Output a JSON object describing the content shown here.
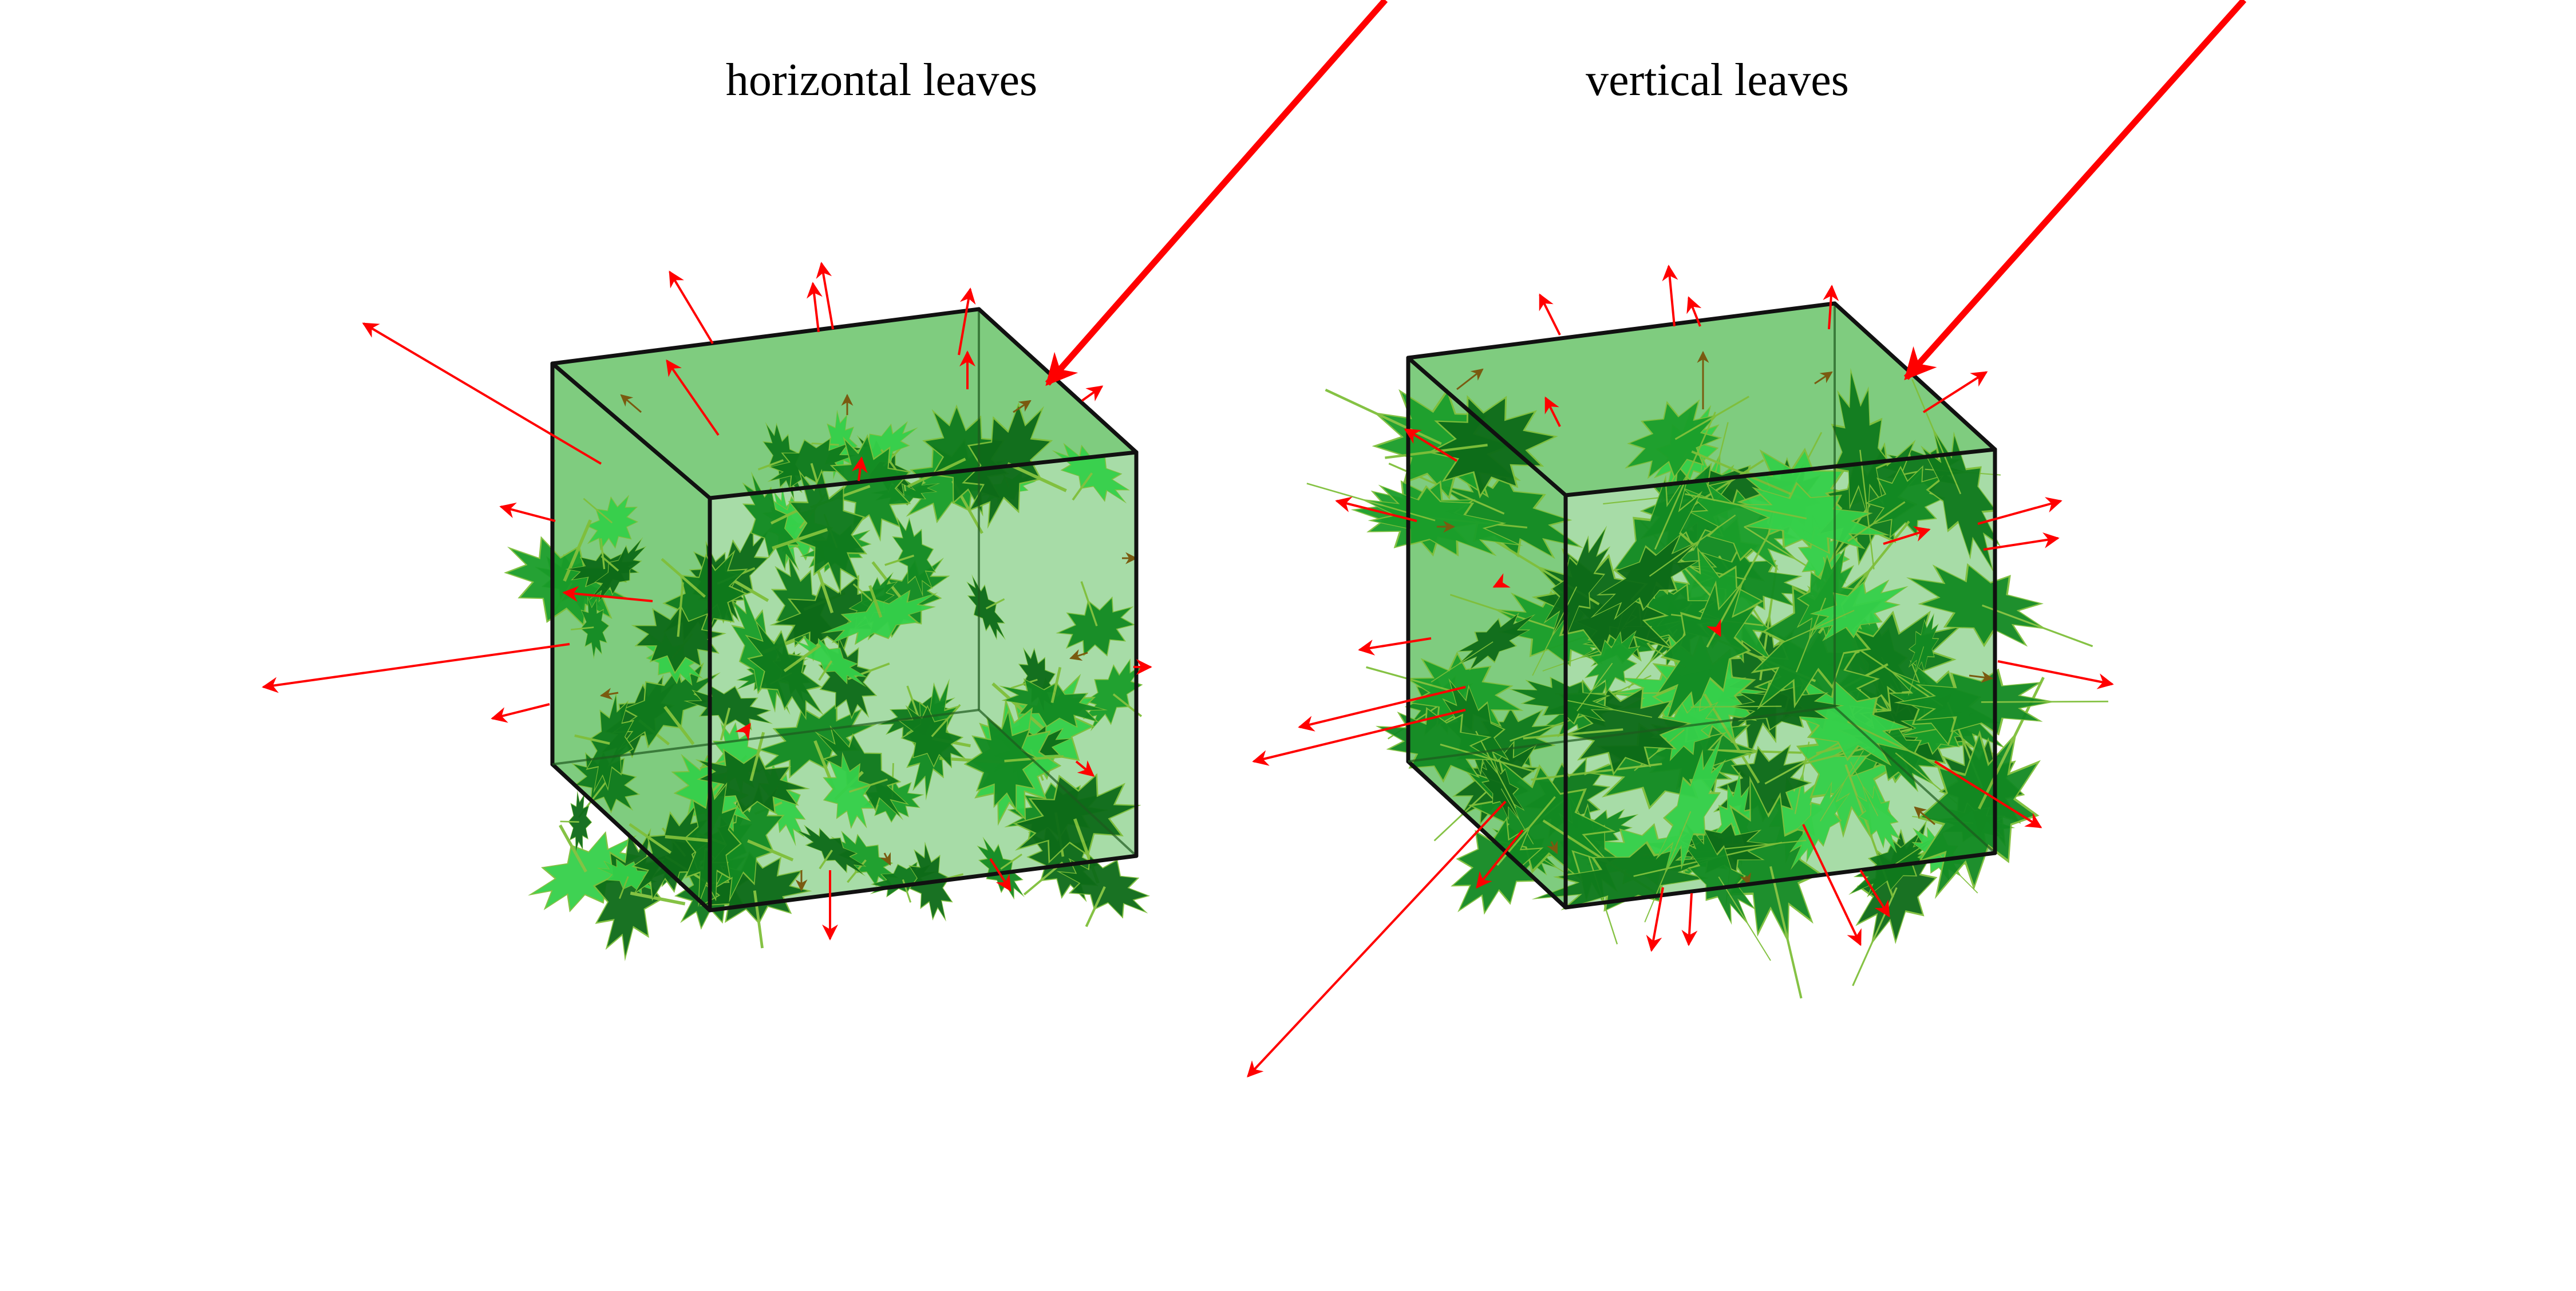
{
  "panels": [
    {
      "title": "horizontal leaves",
      "leaf_orientation": "horizontal"
    },
    {
      "title": "vertical leaves",
      "leaf_orientation": "vertical"
    }
  ],
  "colors": {
    "box_fill": "#5fbf5f",
    "box_edge": "#111111",
    "sun_ray": "#ff0000",
    "reflected_ray": "#ff0000",
    "inner_ray": "#7a5a10",
    "leaf_dark": "#0d6b18",
    "leaf_mid": "#1a9e2a",
    "leaf_light": "#35d04a"
  },
  "icons": {
    "incident_ray": "arrow-icon",
    "scattered_ray": "arrow-icon",
    "leaf": "maple-leaf-icon"
  }
}
